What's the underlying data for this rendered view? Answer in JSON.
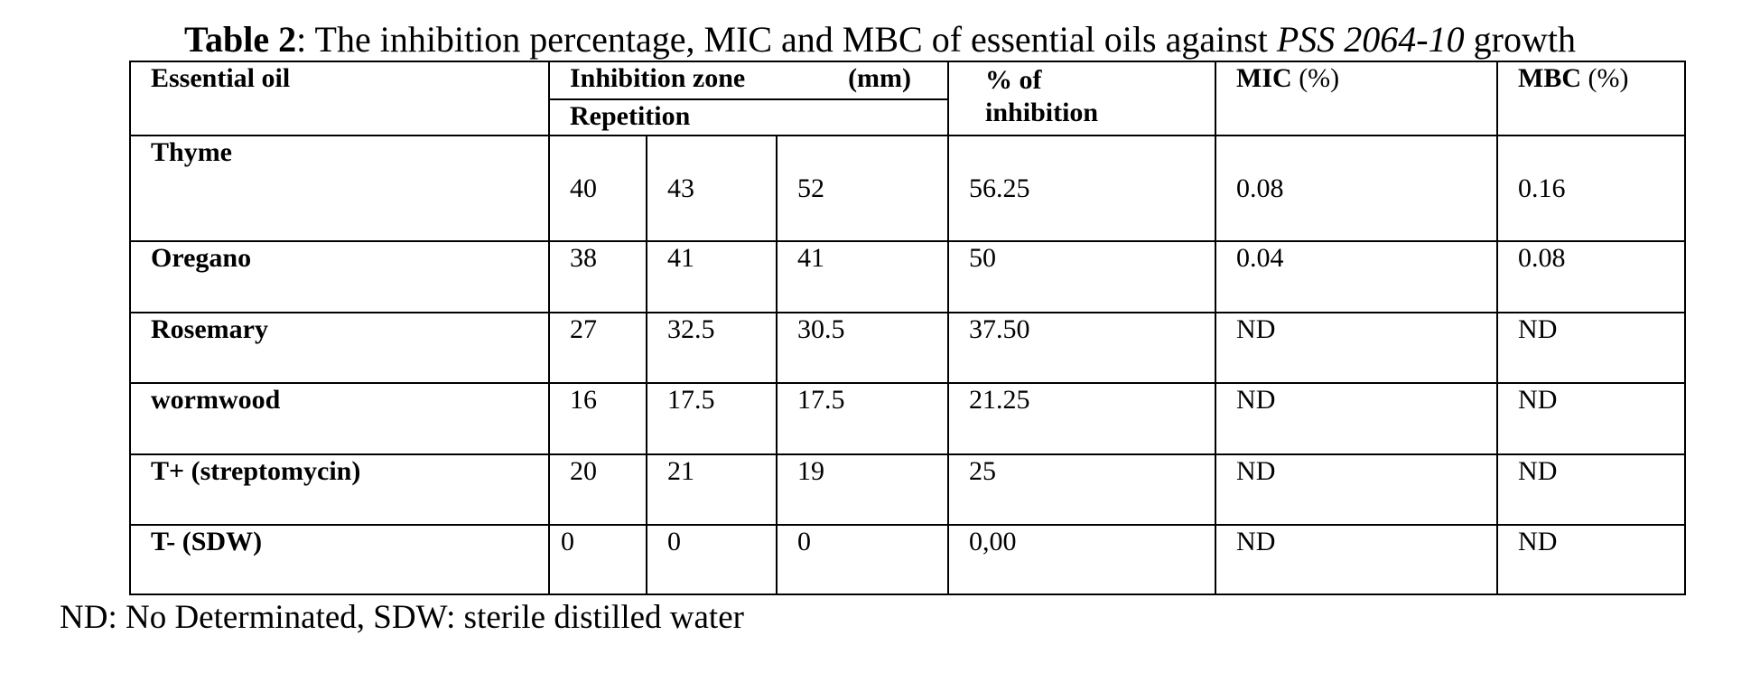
{
  "caption": {
    "label": "Table 2",
    "text_before_italic": ": The inhibition percentage, MIC and MBC of essential oils against ",
    "italic": "PSS 2064-10",
    "text_after_italic": " growth"
  },
  "header": {
    "essential_oil": "Essential oil",
    "inhibition_zone": "Inhibition zone",
    "inhibition_unit": "(mm)",
    "repetition": "Repetition",
    "pct_line1": "% of",
    "pct_line2": "inhibition",
    "mic_label": "MIC",
    "mic_unit": " (%)",
    "mbc_label": "MBC",
    "mbc_unit": " (%)"
  },
  "rows": [
    {
      "name": "Thyme",
      "r1": "40",
      "r2": "43",
      "r3": "52",
      "pct": "56.25",
      "mic": "0.08",
      "mbc": "0.16"
    },
    {
      "name": "Oregano",
      "r1": "38",
      "r2": "41",
      "r3": "41",
      "pct": "50",
      "mic": "0.04",
      "mbc": "0.08"
    },
    {
      "name": "Rosemary",
      "r1": "27",
      "r2": "32.5",
      "r3": "30.5",
      "pct": "37.50",
      "mic": "ND",
      "mbc": "ND"
    },
    {
      "name": "wormwood",
      "r1": "16",
      "r2": "17.5",
      "r3": "17.5",
      "pct": "21.25",
      "mic": "ND",
      "mbc": "ND"
    },
    {
      "name": "T+ (streptomycin)",
      "r1": "20",
      "r2": "21",
      "r3": "19",
      "pct": "25",
      "mic": "ND",
      "mbc": "ND"
    },
    {
      "name": "T- (SDW)",
      "r1": "0",
      "r2": "0",
      "r3": "0",
      "pct": "0,00",
      "mic": "ND",
      "mbc": "ND"
    }
  ],
  "footnote": "ND: No Determinated, SDW: sterile distilled water"
}
